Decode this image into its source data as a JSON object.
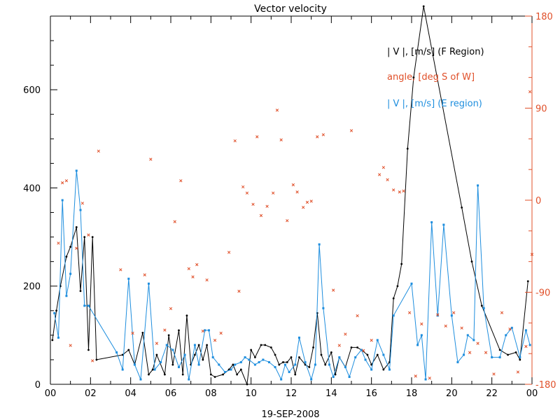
{
  "chart_data": {
    "type": "line",
    "title": "Vector velocity",
    "xlabel": "19-SEP-2008",
    "x_range": [
      0,
      24
    ],
    "x_tick_labels": [
      "00",
      "02",
      "04",
      "06",
      "08",
      "10",
      "12",
      "14",
      "16",
      "18",
      "20",
      "22",
      "00"
    ],
    "y_left_range": [
      0,
      750
    ],
    "y_left_tick_labels": [
      "0",
      "200",
      "400",
      "600"
    ],
    "y_right_range": [
      -180,
      180
    ],
    "y_right_tick_labels": [
      "-180",
      "-90",
      "0",
      "90",
      "180"
    ],
    "legend_placement": "top-right",
    "colors": {
      "f_region": "#000000",
      "angle": "#e0502a",
      "e_region": "#1e8ede",
      "axis_left": "#000000",
      "axis_right": "#e0502a"
    },
    "series": [
      {
        "name": "| V |, [m/s] (F Region)",
        "axis": "left",
        "points": [
          [
            0.1,
            90
          ],
          [
            0.3,
            150
          ],
          [
            0.5,
            200
          ],
          [
            0.8,
            260
          ],
          [
            1.0,
            280
          ],
          [
            1.3,
            320
          ],
          [
            1.5,
            190
          ],
          [
            1.7,
            300
          ],
          [
            1.9,
            70
          ],
          [
            2.1,
            300
          ],
          [
            2.3,
            50
          ],
          [
            3.6,
            60
          ],
          [
            3.9,
            70
          ],
          [
            4.2,
            40
          ],
          [
            4.6,
            105
          ],
          [
            4.9,
            20
          ],
          [
            5.1,
            30
          ],
          [
            5.3,
            60
          ],
          [
            5.7,
            20
          ],
          [
            5.9,
            100
          ],
          [
            6.1,
            40
          ],
          [
            6.4,
            110
          ],
          [
            6.6,
            20
          ],
          [
            6.8,
            140
          ],
          [
            7.0,
            40
          ],
          [
            7.2,
            60
          ],
          [
            7.4,
            80
          ],
          [
            7.6,
            50
          ],
          [
            7.8,
            80
          ],
          [
            8.0,
            20
          ],
          [
            8.2,
            15
          ],
          [
            8.6,
            20
          ],
          [
            8.9,
            30
          ],
          [
            9.1,
            40
          ],
          [
            9.3,
            20
          ],
          [
            9.5,
            30
          ],
          [
            9.8,
            0
          ],
          [
            10.0,
            70
          ],
          [
            10.2,
            55
          ],
          [
            10.5,
            80
          ],
          [
            10.7,
            80
          ],
          [
            11.0,
            75
          ],
          [
            11.2,
            60
          ],
          [
            11.4,
            40
          ],
          [
            11.6,
            45
          ],
          [
            11.8,
            45
          ],
          [
            12.0,
            55
          ],
          [
            12.2,
            20
          ],
          [
            12.4,
            55
          ],
          [
            12.7,
            40
          ],
          [
            12.9,
            35
          ],
          [
            13.1,
            75
          ],
          [
            13.3,
            145
          ],
          [
            13.5,
            60
          ],
          [
            13.7,
            40
          ],
          [
            14.0,
            65
          ],
          [
            14.2,
            20
          ],
          [
            14.4,
            55
          ],
          [
            14.7,
            35
          ],
          [
            15.0,
            75
          ],
          [
            15.3,
            75
          ],
          [
            15.5,
            70
          ],
          [
            15.8,
            60
          ],
          [
            16.0,
            40
          ],
          [
            16.3,
            60
          ],
          [
            16.6,
            30
          ],
          [
            16.9,
            45
          ],
          [
            17.1,
            175
          ],
          [
            17.3,
            200
          ],
          [
            17.5,
            245
          ],
          [
            17.8,
            480
          ],
          [
            18.1,
            625
          ],
          [
            18.6,
            770
          ],
          [
            20.5,
            360
          ],
          [
            21.0,
            250
          ],
          [
            21.5,
            160
          ],
          [
            22.4,
            70
          ],
          [
            22.8,
            60
          ],
          [
            23.2,
            65
          ],
          [
            23.4,
            50
          ],
          [
            23.8,
            210
          ]
        ]
      },
      {
        "name": "angle, [deg S of W]",
        "axis": "right",
        "points": [
          [
            0.4,
            -42
          ],
          [
            0.6,
            17
          ],
          [
            0.8,
            19
          ],
          [
            1.0,
            -142
          ],
          [
            1.3,
            -47
          ],
          [
            1.6,
            -3
          ],
          [
            1.9,
            -34
          ],
          [
            2.1,
            -157
          ],
          [
            2.4,
            48
          ],
          [
            3.5,
            -68
          ],
          [
            4.1,
            -130
          ],
          [
            4.7,
            -73
          ],
          [
            5.0,
            40
          ],
          [
            5.3,
            -140
          ],
          [
            5.7,
            -127
          ],
          [
            6.0,
            -106
          ],
          [
            6.2,
            -21
          ],
          [
            6.5,
            19
          ],
          [
            6.9,
            -67
          ],
          [
            7.1,
            -75
          ],
          [
            7.3,
            -63
          ],
          [
            7.6,
            -128
          ],
          [
            7.8,
            -78
          ],
          [
            8.2,
            -137
          ],
          [
            8.5,
            -130
          ],
          [
            8.9,
            -51
          ],
          [
            9.2,
            58
          ],
          [
            9.4,
            -89
          ],
          [
            9.6,
            13
          ],
          [
            9.8,
            7
          ],
          [
            10.1,
            -4
          ],
          [
            10.3,
            62
          ],
          [
            10.5,
            -15
          ],
          [
            10.8,
            -6
          ],
          [
            11.1,
            7
          ],
          [
            11.3,
            88
          ],
          [
            11.5,
            59
          ],
          [
            11.8,
            -20
          ],
          [
            12.1,
            15
          ],
          [
            12.3,
            8
          ],
          [
            12.6,
            -7
          ],
          [
            12.8,
            -2
          ],
          [
            13.0,
            -1
          ],
          [
            13.3,
            62
          ],
          [
            13.6,
            64
          ],
          [
            14.1,
            -88
          ],
          [
            14.4,
            -142
          ],
          [
            14.7,
            -131
          ],
          [
            15.0,
            68
          ],
          [
            15.3,
            -113
          ],
          [
            15.6,
            -147
          ],
          [
            16.0,
            -137
          ],
          [
            16.4,
            25
          ],
          [
            16.6,
            32
          ],
          [
            16.8,
            20
          ],
          [
            17.1,
            10
          ],
          [
            17.4,
            8
          ],
          [
            17.6,
            9
          ],
          [
            17.9,
            -110
          ],
          [
            18.2,
            -172
          ],
          [
            18.5,
            -121
          ],
          [
            18.9,
            -174
          ],
          [
            19.3,
            -112
          ],
          [
            19.7,
            -123
          ],
          [
            20.1,
            -110
          ],
          [
            20.5,
            -125
          ],
          [
            20.9,
            -149
          ],
          [
            21.3,
            -140
          ],
          [
            21.7,
            -149
          ],
          [
            22.1,
            -170
          ],
          [
            22.5,
            -110
          ],
          [
            22.9,
            -126
          ],
          [
            23.3,
            -168
          ],
          [
            23.7,
            -143
          ],
          [
            23.9,
            106
          ],
          [
            24.0,
            -53
          ]
        ]
      },
      {
        "name": "| V |, [m/s] (E region)",
        "axis": "left",
        "points": [
          [
            0.2,
            145
          ],
          [
            0.4,
            95
          ],
          [
            0.6,
            375
          ],
          [
            0.8,
            180
          ],
          [
            1.0,
            225
          ],
          [
            1.3,
            435
          ],
          [
            1.5,
            355
          ],
          [
            1.7,
            160
          ],
          [
            1.9,
            160
          ],
          [
            3.3,
            65
          ],
          [
            3.6,
            30
          ],
          [
            3.9,
            215
          ],
          [
            4.2,
            40
          ],
          [
            4.5,
            10
          ],
          [
            4.9,
            205
          ],
          [
            5.2,
            30
          ],
          [
            5.5,
            45
          ],
          [
            5.8,
            80
          ],
          [
            6.1,
            70
          ],
          [
            6.4,
            35
          ],
          [
            6.7,
            60
          ],
          [
            6.9,
            10
          ],
          [
            7.2,
            80
          ],
          [
            7.4,
            40
          ],
          [
            7.7,
            110
          ],
          [
            7.9,
            110
          ],
          [
            8.1,
            55
          ],
          [
            8.4,
            40
          ],
          [
            8.7,
            25
          ],
          [
            9.0,
            30
          ],
          [
            9.2,
            40
          ],
          [
            9.5,
            45
          ],
          [
            9.7,
            55
          ],
          [
            9.9,
            50
          ],
          [
            10.2,
            40
          ],
          [
            10.4,
            45
          ],
          [
            10.6,
            50
          ],
          [
            10.9,
            45
          ],
          [
            11.2,
            35
          ],
          [
            11.5,
            10
          ],
          [
            11.7,
            40
          ],
          [
            11.9,
            25
          ],
          [
            12.2,
            40
          ],
          [
            12.4,
            95
          ],
          [
            12.7,
            45
          ],
          [
            13.0,
            10
          ],
          [
            13.2,
            40
          ],
          [
            13.4,
            285
          ],
          [
            13.6,
            155
          ],
          [
            13.9,
            40
          ],
          [
            14.1,
            15
          ],
          [
            14.4,
            55
          ],
          [
            14.7,
            35
          ],
          [
            14.9,
            15
          ],
          [
            15.2,
            55
          ],
          [
            15.5,
            70
          ],
          [
            15.7,
            50
          ],
          [
            16.0,
            30
          ],
          [
            16.3,
            90
          ],
          [
            16.6,
            60
          ],
          [
            16.9,
            30
          ],
          [
            17.1,
            140
          ],
          [
            18.0,
            205
          ],
          [
            18.3,
            80
          ],
          [
            18.5,
            100
          ],
          [
            18.7,
            10
          ],
          [
            19.0,
            330
          ],
          [
            19.3,
            140
          ],
          [
            19.6,
            325
          ],
          [
            20.0,
            140
          ],
          [
            20.3,
            45
          ],
          [
            20.6,
            60
          ],
          [
            20.8,
            100
          ],
          [
            21.1,
            90
          ],
          [
            21.3,
            405
          ],
          [
            21.6,
            155
          ],
          [
            22.0,
            55
          ],
          [
            22.4,
            55
          ],
          [
            22.7,
            100
          ],
          [
            23.0,
            115
          ],
          [
            23.4,
            55
          ],
          [
            23.7,
            110
          ],
          [
            23.9,
            80
          ]
        ]
      }
    ]
  }
}
